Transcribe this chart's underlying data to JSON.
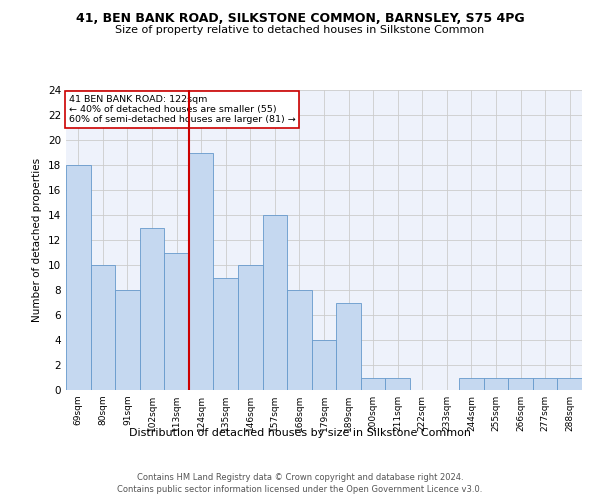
{
  "title1": "41, BEN BANK ROAD, SILKSTONE COMMON, BARNSLEY, S75 4PG",
  "title2": "Size of property relative to detached houses in Silkstone Common",
  "xlabel": "Distribution of detached houses by size in Silkstone Common",
  "ylabel": "Number of detached properties",
  "footnote1": "Contains HM Land Registry data © Crown copyright and database right 2024.",
  "footnote2": "Contains public sector information licensed under the Open Government Licence v3.0.",
  "categories": [
    "69sqm",
    "80sqm",
    "91sqm",
    "102sqm",
    "113sqm",
    "124sqm",
    "135sqm",
    "146sqm",
    "157sqm",
    "168sqm",
    "179sqm",
    "189sqm",
    "200sqm",
    "211sqm",
    "222sqm",
    "233sqm",
    "244sqm",
    "255sqm",
    "266sqm",
    "277sqm",
    "288sqm"
  ],
  "values": [
    18,
    10,
    8,
    13,
    11,
    19,
    9,
    10,
    14,
    8,
    4,
    7,
    1,
    1,
    0,
    0,
    1,
    1,
    1,
    1,
    1
  ],
  "bar_color": "#c5d8f0",
  "bar_edge_color": "#6699cc",
  "highlight_index": 5,
  "highlight_line_color": "#cc0000",
  "annotation_title": "41 BEN BANK ROAD: 122sqm",
  "annotation_line1": "← 40% of detached houses are smaller (55)",
  "annotation_line2": "60% of semi-detached houses are larger (81) →",
  "annotation_box_color": "#cc0000",
  "ylim": [
    0,
    24
  ],
  "yticks": [
    0,
    2,
    4,
    6,
    8,
    10,
    12,
    14,
    16,
    18,
    20,
    22,
    24
  ],
  "grid_color": "#cccccc",
  "bg_color": "#eef2fb"
}
